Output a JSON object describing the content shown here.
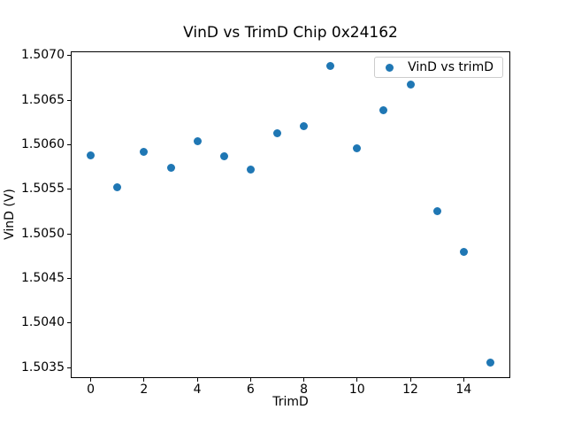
{
  "chart_data": {
    "type": "scatter",
    "title": "VinD vs TrimD Chip 0x24162",
    "xlabel": "TrimD",
    "ylabel": "VinD (V)",
    "legend": {
      "label": "VinD vs trimD",
      "position": "upper right"
    },
    "marker": {
      "shape": "circle",
      "color": "#1f77b4"
    },
    "x": [
      0,
      1,
      2,
      3,
      4,
      5,
      6,
      7,
      8,
      9,
      10,
      11,
      12,
      13,
      14,
      15
    ],
    "y": [
      1.50588,
      1.50552,
      1.50592,
      1.50574,
      1.50604,
      1.50587,
      1.50572,
      1.50613,
      1.50621,
      1.50688,
      1.50596,
      1.50639,
      1.50667,
      1.50526,
      1.5048,
      1.50356
    ],
    "xlim": [
      -0.75,
      15.75
    ],
    "ylim": [
      1.503384,
      1.507046
    ],
    "xticks": [
      0,
      2,
      4,
      6,
      8,
      10,
      12,
      14
    ],
    "yticks": [
      1.5035,
      1.504,
      1.5045,
      1.505,
      1.5055,
      1.506,
      1.5065,
      1.507
    ],
    "ytick_decimals": 4,
    "grid": false,
    "background": "#ffffff",
    "spine_color": "#000000"
  }
}
